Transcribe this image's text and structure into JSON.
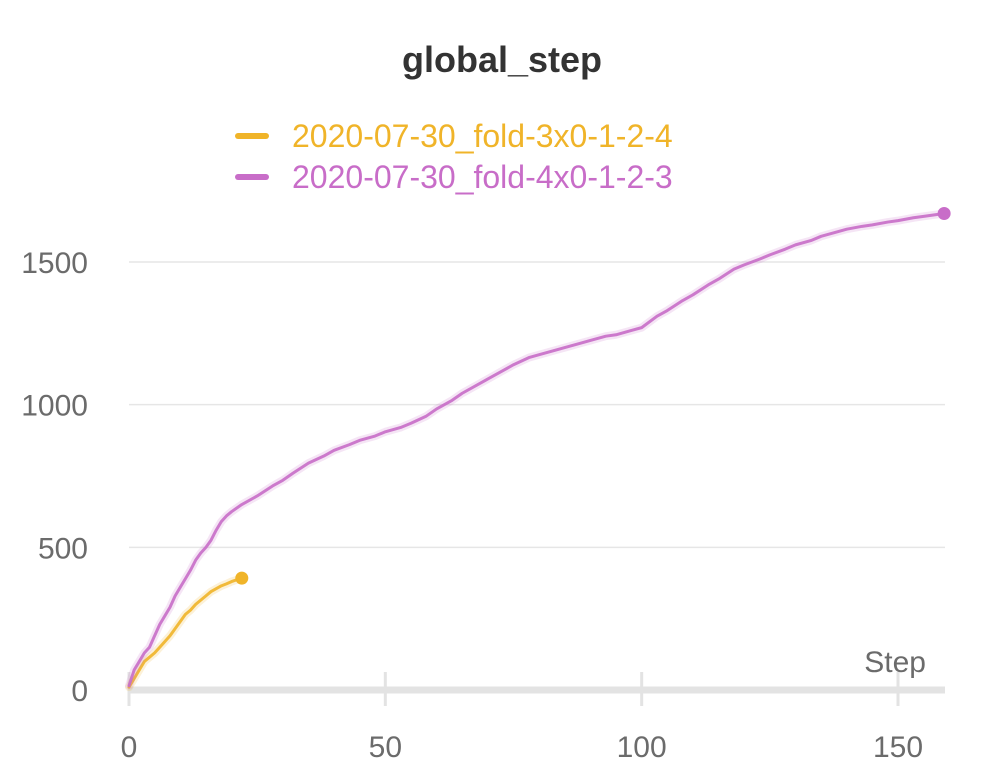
{
  "chart_data": {
    "type": "line",
    "title": "global_step",
    "xlabel": "Step",
    "ylabel": "",
    "xlim": [
      0,
      160
    ],
    "ylim": [
      0,
      1700
    ],
    "x_ticks": [
      0,
      50,
      100,
      150
    ],
    "y_ticks": [
      0,
      500,
      1000,
      1500
    ],
    "grid": true,
    "legend_position": "top-center",
    "series": [
      {
        "name": "2020-07-30_fold-3x0-1-2-4",
        "color": "#f0b429",
        "x": [
          0,
          1,
          2,
          3,
          4,
          5,
          6,
          7,
          8,
          9,
          10,
          11,
          12,
          13,
          14,
          15,
          16,
          17,
          18,
          19,
          20,
          21,
          22
        ],
        "y": [
          10,
          40,
          70,
          100,
          115,
          130,
          150,
          170,
          190,
          215,
          240,
          265,
          280,
          300,
          315,
          330,
          345,
          355,
          365,
          372,
          380,
          386,
          392
        ]
      },
      {
        "name": "2020-07-30_fold-4x0-1-2-3",
        "color": "#c86dc8",
        "x": [
          0,
          1,
          2,
          3,
          4,
          5,
          6,
          7,
          8,
          9,
          10,
          11,
          12,
          13,
          14,
          15,
          16,
          17,
          18,
          19,
          20,
          22,
          25,
          28,
          30,
          32,
          35,
          38,
          40,
          43,
          45,
          48,
          50,
          53,
          55,
          58,
          60,
          63,
          65,
          68,
          70,
          73,
          75,
          78,
          80,
          83,
          85,
          88,
          90,
          93,
          95,
          98,
          100,
          103,
          105,
          108,
          110,
          113,
          115,
          118,
          120,
          123,
          125,
          128,
          130,
          133,
          135,
          138,
          140,
          143,
          145,
          148,
          150,
          153,
          155,
          159
        ],
        "y": [
          15,
          70,
          100,
          130,
          150,
          190,
          230,
          260,
          290,
          330,
          360,
          390,
          420,
          455,
          480,
          500,
          525,
          560,
          590,
          610,
          625,
          650,
          680,
          715,
          735,
          760,
          795,
          820,
          840,
          860,
          875,
          890,
          905,
          920,
          935,
          960,
          985,
          1015,
          1040,
          1070,
          1090,
          1120,
          1140,
          1165,
          1175,
          1190,
          1200,
          1215,
          1225,
          1240,
          1245,
          1260,
          1270,
          1310,
          1330,
          1365,
          1385,
          1420,
          1440,
          1475,
          1490,
          1510,
          1525,
          1545,
          1560,
          1575,
          1590,
          1605,
          1615,
          1625,
          1630,
          1640,
          1645,
          1655,
          1660,
          1670
        ]
      }
    ]
  }
}
